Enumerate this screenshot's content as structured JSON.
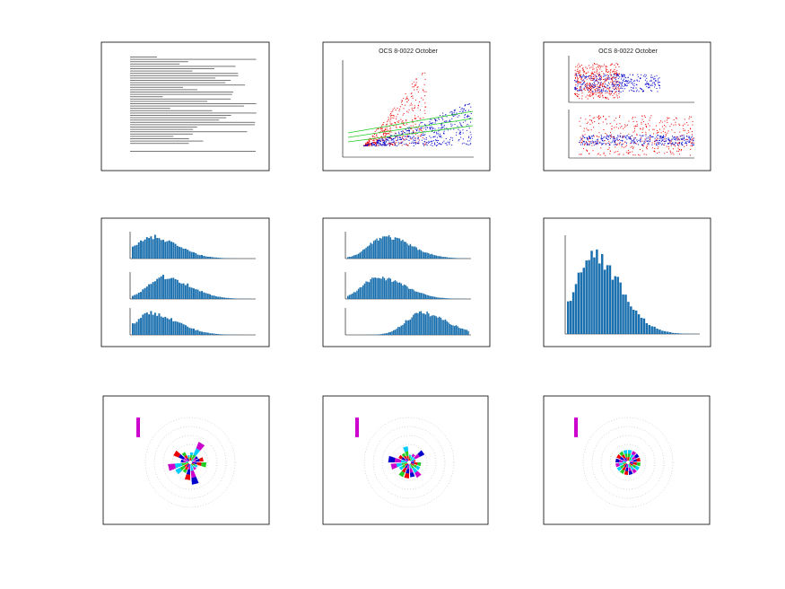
{
  "panels": [
    {
      "title": "OCS 8-0022 October"
    },
    {
      "title": "OCS 8-0022 October"
    }
  ]
}
